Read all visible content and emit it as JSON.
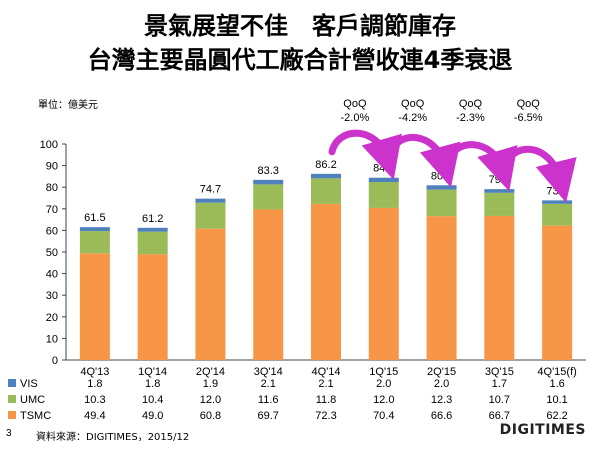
{
  "titles": {
    "line1": "景氣展望不佳　客戶調節庫存",
    "line2": "台灣主要晶圓代工廠合計營收連4季衰退"
  },
  "unit_label": "單位：億美元",
  "page_number": "3",
  "source": "資料來源：DIGITIMES，2015/12",
  "brand": "DIGITIMES",
  "colors": {
    "TSMC": "#F79646",
    "UMC": "#9BBB59",
    "VIS": "#4F81BD",
    "arrow": "#CC33CC"
  },
  "chart_data": {
    "type": "bar",
    "stacked": true,
    "categories": [
      "4Q'13",
      "1Q'14",
      "2Q'14",
      "3Q'14",
      "4Q'14",
      "1Q'15",
      "2Q'15",
      "3Q'15",
      "4Q'15(f)"
    ],
    "series": [
      {
        "name": "VIS",
        "values": [
          1.8,
          1.8,
          1.9,
          2.1,
          2.1,
          2.0,
          2.0,
          1.7,
          1.6
        ]
      },
      {
        "name": "UMC",
        "values": [
          10.3,
          10.4,
          12.0,
          11.6,
          11.8,
          12.0,
          12.3,
          10.7,
          10.1
        ]
      },
      {
        "name": "TSMC",
        "values": [
          49.4,
          49.0,
          60.8,
          69.7,
          72.3,
          70.4,
          66.6,
          66.7,
          62.2
        ]
      }
    ],
    "totals": [
      "61.5",
      "61.2",
      "74.7",
      "83.3",
      "86.2",
      "84.5",
      "80.9",
      "79.1",
      "73.9"
    ],
    "table_values": {
      "VIS": [
        "1.8",
        "1.8",
        "1.9",
        "2.1",
        "2.1",
        "2.0",
        "2.0",
        "1.7",
        "1.6"
      ],
      "UMC": [
        "10.3",
        "10.4",
        "12.0",
        "11.6",
        "11.8",
        "12.0",
        "12.3",
        "10.7",
        "10.1"
      ],
      "TSMC": [
        "49.4",
        "49.0",
        "60.8",
        "69.7",
        "72.3",
        "70.4",
        "66.6",
        "66.7",
        "62.2"
      ]
    },
    "qoq": [
      {
        "from": 4,
        "to": 5,
        "label": "QoQ",
        "value": "-2.0%"
      },
      {
        "from": 5,
        "to": 6,
        "label": "QoQ",
        "value": "-4.2%"
      },
      {
        "from": 6,
        "to": 7,
        "label": "QoQ",
        "value": "-2.3%"
      },
      {
        "from": 7,
        "to": 8,
        "label": "QoQ",
        "value": "-6.5%"
      }
    ],
    "yticks": [
      "0",
      "10",
      "20",
      "30",
      "40",
      "50",
      "60",
      "70",
      "80",
      "90",
      "100"
    ],
    "ylim": [
      0,
      100
    ],
    "grid": false,
    "legend": "data table below chart"
  }
}
